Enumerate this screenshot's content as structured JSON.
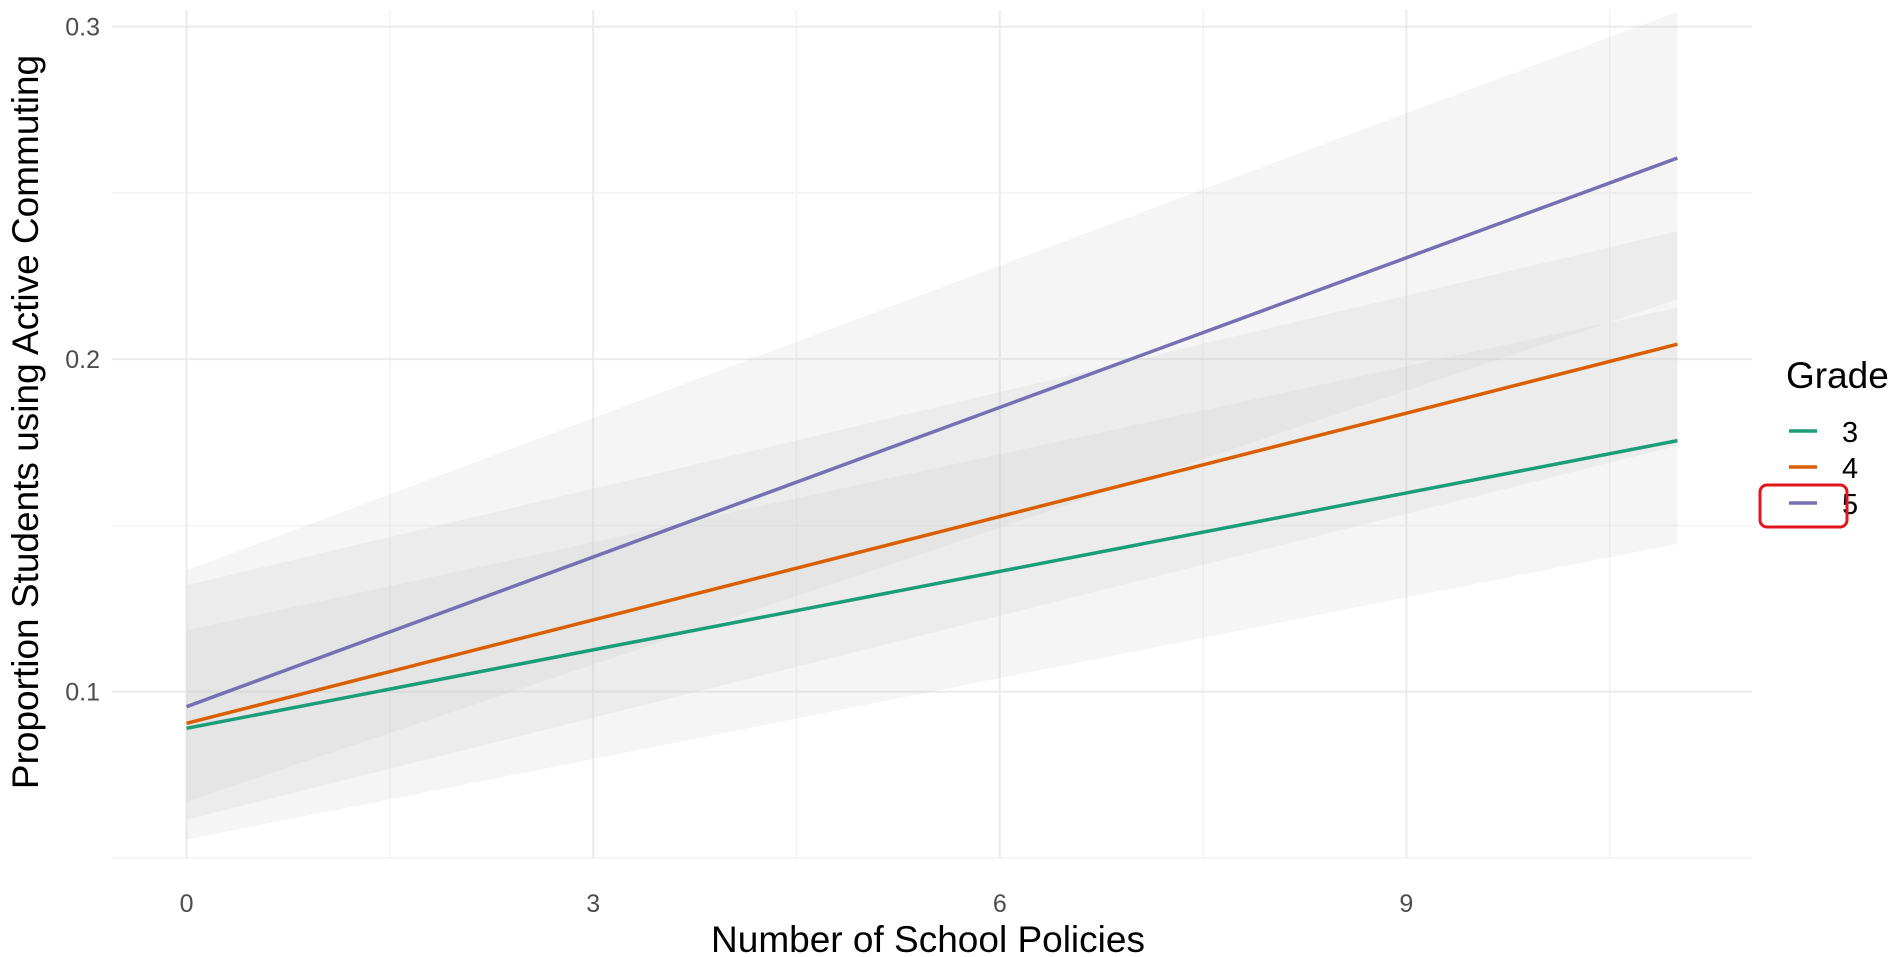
{
  "chart_data": {
    "type": "line",
    "title": "",
    "xlabel": "Number of School Policies",
    "ylabel": "Proportion Students using Active Commuting",
    "xlim": [
      -0.55,
      11.55
    ],
    "ylim": [
      0.05,
      0.305
    ],
    "x_ticks": [
      0,
      3,
      6,
      9
    ],
    "x_tick_labels": [
      "0",
      "3",
      "6",
      "9"
    ],
    "y_ticks": [
      0.1,
      0.2,
      0.3
    ],
    "y_tick_labels": [
      "0.1",
      "0.2",
      "0.3"
    ],
    "grid": true,
    "legend": {
      "title": "Grade",
      "position": "right"
    },
    "series": [
      {
        "name": "3",
        "color": "#1b9e77",
        "x": [
          0,
          11
        ],
        "y": [
          0.089,
          0.1755
        ],
        "ci_lower": [
          0.0555,
          0.1445
        ],
        "ci_upper": [
          0.1185,
          0.2155
        ]
      },
      {
        "name": "4",
        "color": "#d95f02",
        "x": [
          0,
          11
        ],
        "y": [
          0.0905,
          0.2045
        ],
        "ci_lower": [
          0.0615,
          0.174
        ],
        "ci_upper": [
          0.132,
          0.2385
        ]
      },
      {
        "name": "5",
        "color": "#7570b3",
        "x": [
          0,
          11
        ],
        "y": [
          0.0955,
          0.2605
        ],
        "ci_lower": [
          0.067,
          0.218
        ],
        "ci_upper": [
          0.1365,
          0.3045
        ]
      }
    ]
  }
}
